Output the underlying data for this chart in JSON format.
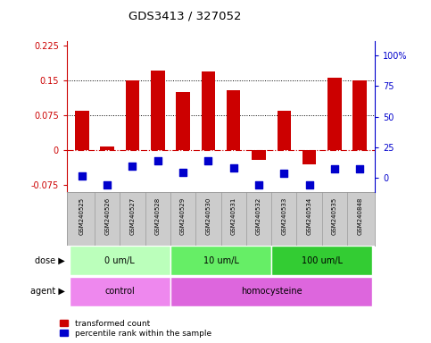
{
  "title": "GDS3413 / 327052",
  "samples": [
    "GSM240525",
    "GSM240526",
    "GSM240527",
    "GSM240528",
    "GSM240529",
    "GSM240530",
    "GSM240531",
    "GSM240532",
    "GSM240533",
    "GSM240534",
    "GSM240535",
    "GSM240848"
  ],
  "red_values": [
    0.085,
    0.008,
    0.15,
    0.172,
    0.125,
    0.17,
    0.13,
    -0.02,
    0.085,
    -0.03,
    0.157,
    0.15
  ],
  "blue_values": [
    -0.055,
    -0.075,
    -0.035,
    -0.022,
    -0.048,
    -0.022,
    -0.038,
    -0.075,
    -0.05,
    -0.075,
    -0.04,
    -0.04
  ],
  "ylim_left": [
    -0.09,
    0.235
  ],
  "yticks_left": [
    -0.075,
    0.0,
    0.075,
    0.15,
    0.225
  ],
  "ytick_labels_left": [
    "-0.075",
    "0",
    "0.075",
    "0.15",
    "0.225"
  ],
  "ylim_right": [
    -12,
    112
  ],
  "yticks_right": [
    0,
    25,
    50,
    75,
    100
  ],
  "ytick_labels_right": [
    "0",
    "25",
    "50",
    "75",
    "100%"
  ],
  "hlines": [
    0.075,
    0.15
  ],
  "bar_color": "#cc0000",
  "dot_color": "#0000cc",
  "zero_line_color": "#cc0000",
  "dose_groups": [
    {
      "label": "0 um/L",
      "start": 0,
      "end": 4,
      "color": "#bbffbb"
    },
    {
      "label": "10 um/L",
      "start": 4,
      "end": 8,
      "color": "#66ee66"
    },
    {
      "label": "100 um/L",
      "start": 8,
      "end": 12,
      "color": "#33cc33"
    }
  ],
  "agent_groups": [
    {
      "label": "control",
      "start": 0,
      "end": 4,
      "color": "#ee88ee"
    },
    {
      "label": "homocysteine",
      "start": 4,
      "end": 12,
      "color": "#dd66dd"
    }
  ],
  "legend_red": "transformed count",
  "legend_blue": "percentile rank within the sample",
  "dose_label": "dose",
  "agent_label": "agent",
  "bar_width": 0.55,
  "dot_size": 28,
  "background_color": "#ffffff",
  "plot_bg": "#ffffff",
  "tick_label_color_left": "#cc0000",
  "tick_label_color_right": "#0000cc",
  "grid_color": "#000000",
  "sample_bg": "#cccccc"
}
